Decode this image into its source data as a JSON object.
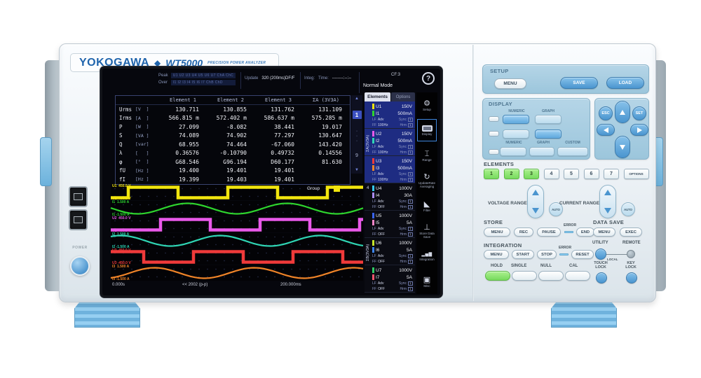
{
  "brand": {
    "logo": "YOKOGAWA",
    "diamond": "◆",
    "model": "WT5000",
    "tagline": "PRECISION POWER ANALYZER"
  },
  "screen": {
    "header": {
      "peak_label": "Peak",
      "peak_channels": "U1 U2 U3 U4 U5 U6 U7 ChA ChC",
      "over_label": "Over",
      "over_channels": "I1 I2 I3 I4 I5 I6 I7 ChB ChD",
      "update_label": "Update",
      "update_value": "320 (200ms)DF/F",
      "integ_label": "Integ:",
      "time_label": "Time:",
      "time_value": "--------:--:--",
      "cf_value": "CF:3",
      "mode": "Normal Mode",
      "help": "?"
    },
    "table": {
      "columns": [
        "Element 1",
        "Element 2",
        "Element 3",
        "ΣA (3V3A)"
      ],
      "rows": [
        {
          "name": "Urms",
          "unit": "[V  ]",
          "values": [
            "130.711",
            "130.855",
            "131.762",
            "131.109"
          ]
        },
        {
          "name": "Irms",
          "unit": "[A  ]",
          "values": [
            "566.815 m",
            "572.402 m",
            "586.637 m",
            "575.285 m"
          ]
        },
        {
          "name": "P",
          "unit": "[W  ]",
          "values": [
            "27.099",
            "-8.082",
            "38.441",
            "19.017"
          ]
        },
        {
          "name": "S",
          "unit": "[VA ]",
          "values": [
            "74.089",
            "74.902",
            "77.297",
            "130.647"
          ]
        },
        {
          "name": "Q",
          "unit": "[var]",
          "values": [
            "68.955",
            "74.464",
            "-67.060",
            "143.420"
          ]
        },
        {
          "name": "λ",
          "unit": "[   ]",
          "values": [
            "0.36576",
            "-0.10790",
            "0.49732",
            "0.14556"
          ]
        },
        {
          "name": "φ",
          "unit": "[°  ]",
          "values": [
            "G68.546",
            "G96.194",
            "D60.177",
            "81.630"
          ]
        },
        {
          "name": "fU",
          "unit": "[Hz ]",
          "values": [
            "19.400",
            "19.401",
            "19.401",
            ""
          ]
        },
        {
          "name": "fI",
          "unit": "[Hz ]",
          "values": [
            "19.399",
            "19.403",
            "19.401",
            ""
          ]
        }
      ]
    },
    "pager": {
      "up": "▲",
      "current": "1",
      "dots": "·\n·\n·",
      "last": "9",
      "down": "▼"
    },
    "waveform": {
      "group_label": "Group",
      "time_start": "0.000s",
      "time_mid": "<< 2002 (p-p)",
      "time_end": "200.000ms",
      "lanes": [
        {
          "ch": "U1",
          "pos": "450.0 V",
          "neg": "-450.0 V",
          "color": "#f2e50e",
          "type": "square",
          "phase": 0.83
        },
        {
          "ch": "I1",
          "pos": "1.500 A",
          "neg": "-1.500 A",
          "color": "#2ed52e",
          "type": "sine",
          "phase": 0.48
        },
        {
          "ch": "U2",
          "pos": "450.0 V",
          "neg": "-450.0 V",
          "color": "#e959e9",
          "type": "square",
          "phase": 0.5
        },
        {
          "ch": "I2",
          "pos": "1.500 A",
          "neg": "-1.500 A",
          "color": "#2fd5b4",
          "type": "sine",
          "phase": 0.15
        },
        {
          "ch": "U3",
          "pos": "450.0 V",
          "neg": "-450.0 V",
          "color": "#f03a3a",
          "type": "square",
          "phase": 0.17
        },
        {
          "ch": "I3",
          "pos": "1.500 A",
          "neg": "-1.500 A",
          "color": "#f08428",
          "type": "sine",
          "phase": 0.81
        }
      ]
    },
    "elements_panel": {
      "tabs": [
        {
          "label": "Elements"
        },
        {
          "label": "Options"
        }
      ],
      "group_a": "ΣA(3V3A)",
      "group_4": "4",
      "group_b": "ΣB(3V3A)",
      "elements": [
        {
          "u": "U1",
          "urange": "150V",
          "ucolor": "#f2e50e",
          "i": "I1",
          "irange": "500mA",
          "icolor": "#2ed52e",
          "l1a": "LF",
          "l1b": "Adv",
          "r1": "Sync",
          "l2a": "FF",
          "l2b": "100Hz",
          "r2": "Hrm",
          "chip": "1",
          "selected": true
        },
        {
          "u": "U2",
          "urange": "150V",
          "ucolor": "#e959e9",
          "i": "I2",
          "irange": "500mA",
          "icolor": "#2fd5b4",
          "l1a": "LF",
          "l1b": "Adv",
          "r1": "Sync",
          "l2a": "FF",
          "l2b": "100Hz",
          "r2": "Hrm",
          "chip": "1",
          "selected": true
        },
        {
          "u": "U3",
          "urange": "150V",
          "ucolor": "#f03a3a",
          "i": "I3",
          "irange": "500mA",
          "icolor": "#f08428",
          "l1a": "LF",
          "l1b": "Adv",
          "r1": "Sync",
          "l2a": "FF",
          "l2b": "100Hz",
          "r2": "Hrm",
          "chip": "1",
          "selected": true
        },
        {
          "u": "U4",
          "urange": "1000V",
          "ucolor": "#35c8f0",
          "i": "I4",
          "irange": "30A",
          "icolor": "#ab8cf5",
          "l1a": "LF",
          "l1b": "Adv",
          "r1": "Sync",
          "l2a": "FF",
          "l2b": "OFF",
          "r2": "Hrm",
          "chip": "1",
          "selected": false
        },
        {
          "u": "U5",
          "urange": "1000V",
          "ucolor": "#3a64f0",
          "i": "I5",
          "irange": "5A",
          "icolor": "#f585c8",
          "l1a": "LF",
          "l1b": "Adv",
          "r1": "Sync",
          "l2a": "FF",
          "l2b": "OFF",
          "r2": "Hrm",
          "chip": "1",
          "selected": false
        },
        {
          "u": "U6",
          "urange": "1000V",
          "ucolor": "#c6e62c",
          "i": "I6",
          "irange": "5A",
          "icolor": "#3c85f2",
          "l1a": "LF",
          "l1b": "Adv",
          "r1": "Sync",
          "l2a": "FF",
          "l2b": "OFF",
          "r2": "Hrm",
          "chip": "1",
          "selected": false
        },
        {
          "u": "U7",
          "urange": "1000V",
          "ucolor": "#2ecb63",
          "i": "I7",
          "irange": "5A",
          "icolor": "#f2566e",
          "l1a": "LF",
          "l1b": "Adv",
          "r1": "Sync",
          "l2a": "FF",
          "l2b": "OFF",
          "r2": "Hrm",
          "chip": "1",
          "selected": false
        }
      ]
    },
    "sidebar": [
      {
        "name": "setup",
        "label": "Setup",
        "glyph": "⚙",
        "active": false
      },
      {
        "name": "display",
        "label": "Display",
        "glyph": "",
        "active": true
      },
      {
        "name": "range",
        "label": "Range",
        "glyph": "⌶",
        "active": false
      },
      {
        "name": "update-rate-averaging",
        "label": "UpdateRate Averaging",
        "glyph": "↻",
        "active": false
      },
      {
        "name": "filter",
        "label": "Filter",
        "glyph": "◣",
        "active": false
      },
      {
        "name": "store-data-save",
        "label": "Store Data Save",
        "glyph": "⊥",
        "active": false
      },
      {
        "name": "integration",
        "label": "Integration",
        "glyph": "▂▅▇",
        "active": false
      },
      {
        "name": "misc",
        "label": "Misc",
        "glyph": "▣",
        "active": false
      }
    ]
  },
  "panel": {
    "setup": {
      "title": "SETUP",
      "menu": "MENU",
      "save": "SAVE",
      "load": "LOAD"
    },
    "display": {
      "title": "DISPLAY",
      "row1_labels": [
        "NUMERIC",
        "GRAPH"
      ],
      "row3_labels": [
        "NUMERIC",
        "GRAPH",
        "CUSTOM"
      ]
    },
    "nav": {
      "esc": "ESC",
      "set": "SET"
    },
    "elements": {
      "title": "ELEMENTS",
      "buttons": [
        "1",
        "2",
        "3",
        "4",
        "5",
        "6",
        "7"
      ],
      "active_count": 3,
      "option": "OPTIONS"
    },
    "ranges": {
      "voltage": "VOLTAGE RANGE",
      "current": "CURRENT RANGE",
      "auto": "AUTO"
    },
    "store": {
      "title": "STORE",
      "menu": "MENU",
      "rec": "REC",
      "pause": "PAUSE",
      "error": "ERROR",
      "end": "END"
    },
    "data_save": {
      "title": "DATA SAVE",
      "menu": "MENU",
      "exec": "EXEC"
    },
    "integration": {
      "title": "INTEGRATION",
      "menu": "MENU",
      "start": "START",
      "stop": "STOP",
      "error": "ERROR",
      "reset": "RESET"
    },
    "utility": {
      "utility": "UTILITY",
      "remote": "REMOTE",
      "local": "LOCAL"
    },
    "bottom": {
      "hold": "HOLD",
      "single": "SINGLE",
      "null": "NULL",
      "cal": "CAL",
      "touch_lock": "TOUCH\nLOCK",
      "key_lock": "KEY\nLOCK"
    },
    "power": "POWER"
  },
  "colors": {
    "accent_blue": "#1f64ac",
    "button_blue": "#4a95cf",
    "lit_green": "#77da5e",
    "panel_blue": "#a9cee2",
    "selected_element_bg": "#1e2c82"
  }
}
